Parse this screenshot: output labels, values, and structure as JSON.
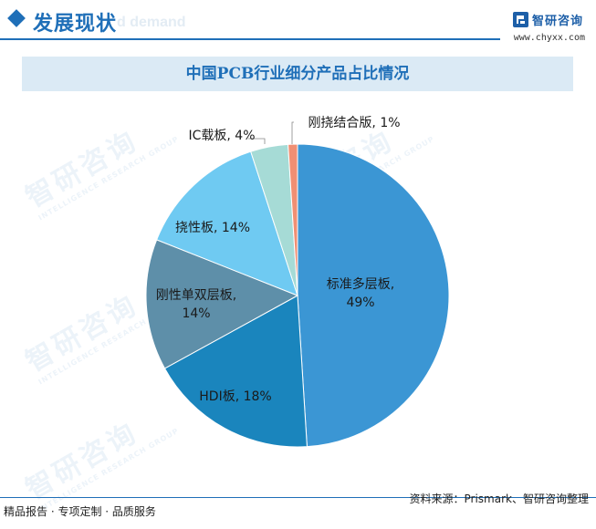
{
  "header": {
    "section_title": "发展现状",
    "section_subtitle": "d demand",
    "brand_name": "智研咨询",
    "brand_url": "www.chyxx.com"
  },
  "chart_title": "中国PCB行业细分产品占比情况",
  "chart_data": {
    "type": "pie",
    "title": "中国PCB行业细分产品占比情况",
    "unit": "%",
    "slices": [
      {
        "label": "标准多层板",
        "value": 49,
        "color": "#3b96d4"
      },
      {
        "label": "HDI板",
        "value": 18,
        "color": "#1a85bd"
      },
      {
        "label": "刚性单双层板",
        "value": 14,
        "color": "#5e8fa9"
      },
      {
        "label": "挠性板",
        "value": 14,
        "color": "#6fcaf2"
      },
      {
        "label": "IC载板",
        "value": 4,
        "color": "#a6dbd6"
      },
      {
        "label": "刚挠结合版",
        "value": 1,
        "color": "#f08f73"
      }
    ],
    "slice_labels": [
      {
        "lines": [
          "标准多层板,",
          "49%"
        ]
      },
      {
        "lines": [
          "HDI板, 18%"
        ]
      },
      {
        "lines": [
          "刚性单双层板,",
          "14%"
        ]
      },
      {
        "lines": [
          "挠性板, 14%"
        ]
      },
      {
        "lines": [
          "IC载板, 4%"
        ]
      },
      {
        "lines": [
          "刚挠结合版, 1%"
        ]
      }
    ]
  },
  "watermark": {
    "main": "智研咨询",
    "sub": "INTELLIGENCE RESEARCH GROUP"
  },
  "footer": {
    "left": "精品报告 · 专项定制 · 品质服务",
    "right": "资料来源：Prismark、智研咨询整理"
  }
}
